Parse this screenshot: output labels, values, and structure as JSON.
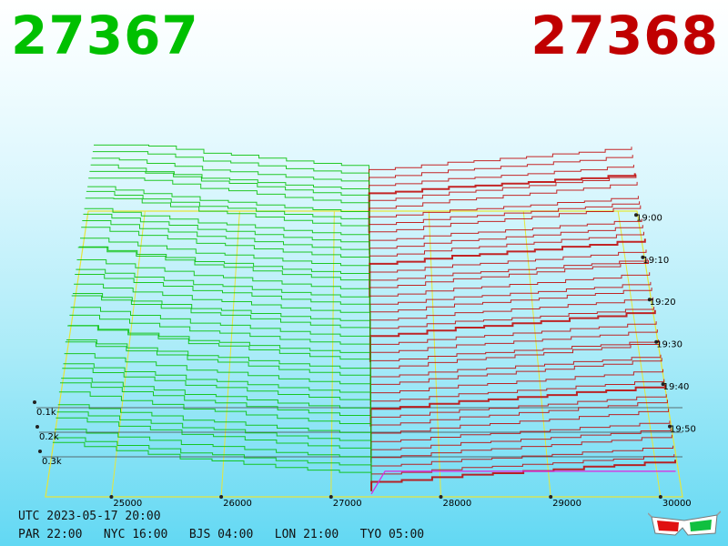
{
  "header": {
    "bid": "27367",
    "ask": "27368",
    "bid_color": "#00c000",
    "ask_color": "#c00000"
  },
  "footer": {
    "utc_line": "UTC 2023-05-17 20:00",
    "zones_line": "PAR 22:00   NYC 16:00   BJS 04:00   LON 21:00   TYO 05:00"
  },
  "icons": {
    "stereo_glasses": "3d-glasses-icon"
  },
  "chart_data": {
    "type": "area",
    "view": "3d-market-depth",
    "x_ticks": [
      "25000",
      "26000",
      "27000",
      "28000",
      "29000",
      "30000"
    ],
    "time_ticks": [
      "19:00",
      "19:10",
      "19:20",
      "19:30",
      "19:40",
      "19:50"
    ],
    "volume_ticks": [
      "0.1k",
      "0.2k",
      "0.3k"
    ],
    "xlim": [
      24400,
      30200
    ],
    "bid_color": "#00c000",
    "ask_color": "#c00000",
    "series": [
      {
        "name": "27367",
        "side": "bid",
        "price": 27367
      },
      {
        "name": "27368",
        "side": "ask",
        "price": 27368
      }
    ]
  }
}
